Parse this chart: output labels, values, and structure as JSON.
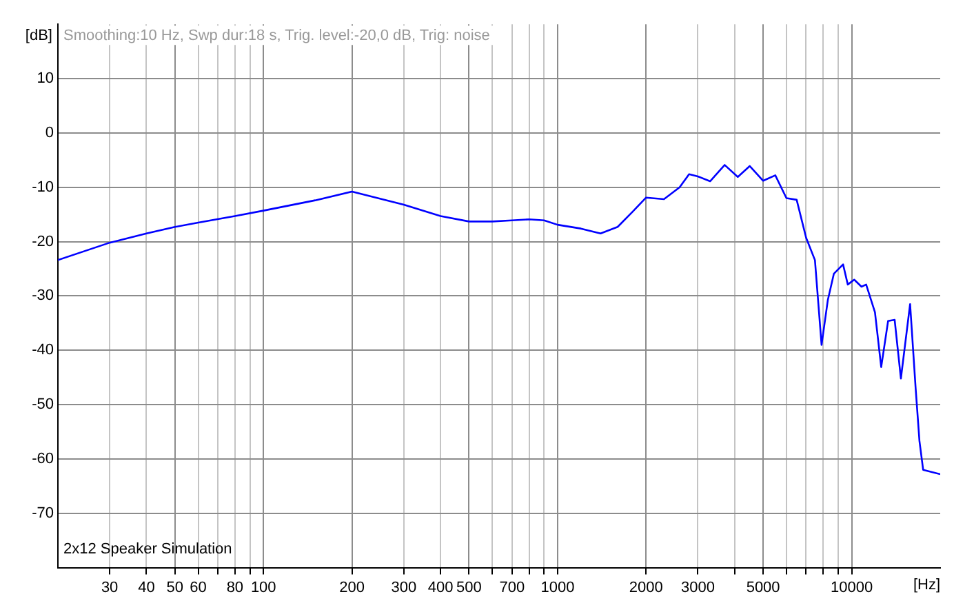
{
  "chart_data": {
    "type": "line",
    "title": "Smoothing:10 Hz, Swp dur:18 s, Trig. level:-20,0 dB, Trig: noise",
    "xlabel": "[Hz]",
    "ylabel": "[dB]",
    "annotations": [
      "2x12 Speaker Simulation"
    ],
    "log": "x",
    "grid": true,
    "legend": false,
    "marker": "none",
    "line_style": "solid",
    "xlim": [
      20,
      20000
    ],
    "ylim": [
      -80,
      20
    ],
    "xticks": [
      30,
      40,
      50,
      60,
      {
        "value": 70,
        "label": null
      },
      80,
      {
        "value": 90,
        "label": null
      },
      100,
      200,
      300,
      400,
      500,
      {
        "value": 600,
        "label": null
      },
      700,
      {
        "value": 800,
        "label": null
      },
      {
        "value": 900,
        "label": null
      },
      1000,
      2000,
      3000,
      {
        "value": 4000,
        "label": null
      },
      5000,
      {
        "value": 6000,
        "label": null
      },
      {
        "value": 7000,
        "label": null
      },
      {
        "value": 8000,
        "label": null
      },
      {
        "value": 9000,
        "label": null
      },
      10000
    ],
    "yticks": [
      -70,
      -60,
      -50,
      -40,
      -30,
      -20,
      -10,
      0,
      10
    ],
    "x": [
      20,
      30,
      40,
      50,
      60,
      80,
      100,
      150,
      200,
      300,
      400,
      500,
      600,
      700,
      800,
      900,
      1000,
      1200,
      1400,
      1600,
      1800,
      2000,
      2300,
      2600,
      2800,
      3000,
      3300,
      3700,
      4100,
      4500,
      5000,
      5500,
      6000,
      6500,
      7000,
      7500,
      7900,
      8300,
      8700,
      9350,
      9700,
      10200,
      10800,
      11200,
      12000,
      12600,
      13300,
      14000,
      14700,
      15800,
      16500,
      17000,
      17500,
      20000
    ],
    "series": [
      {
        "color": "#0000ff",
        "values": [
          -23.4,
          -20.2,
          -18.5,
          -17.3,
          -16.5,
          -15.3,
          -14.3,
          -12.4,
          -10.8,
          -13.2,
          -15.3,
          -16.3,
          -16.3,
          -16.1,
          -15.9,
          -16.1,
          -16.9,
          -17.6,
          -18.5,
          -17.3,
          -14.5,
          -11.9,
          -12.2,
          -10,
          -7.6,
          -8,
          -8.9,
          -5.9,
          -8.1,
          -6.1,
          -8.8,
          -7.8,
          -12,
          -12.3,
          -19.3,
          -23.4,
          -39,
          -30.7,
          -25.9,
          -24.2,
          -27.9,
          -27,
          -28.3,
          -27.9,
          -33,
          -43.1,
          -34.6,
          -34.4,
          -45.2,
          -31.5,
          -47,
          -56.7,
          -62,
          -62.8
        ]
      }
    ]
  }
}
